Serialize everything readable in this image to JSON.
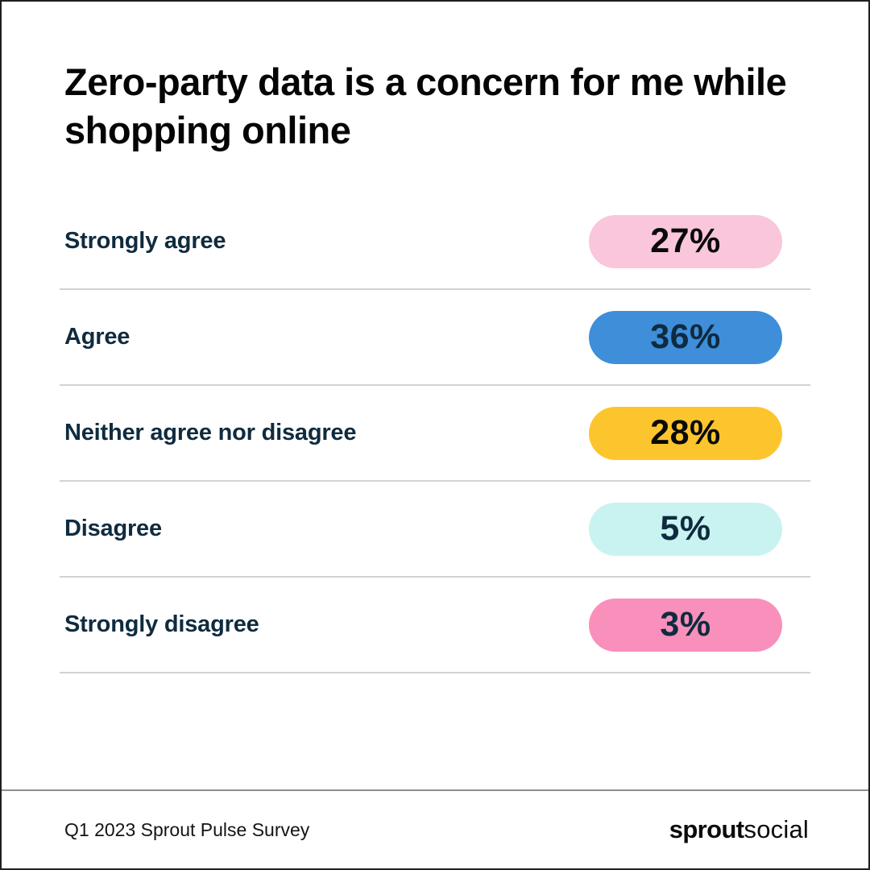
{
  "title": "Zero-party data is a concern for me while shopping online",
  "chart_data": {
    "type": "bar",
    "orientation": "horizontal-pills",
    "title": "Zero-party data is a concern for me while shopping online",
    "categories": [
      "Strongly agree",
      "Agree",
      "Neither agree nor disagree",
      "Disagree",
      "Strongly disagree"
    ],
    "values": [
      27,
      36,
      28,
      5,
      3
    ],
    "unit": "%",
    "legend": false,
    "grid": false
  },
  "rows": [
    {
      "label": "Strongly agree",
      "value": "27%",
      "pill_color": "#f9c6db",
      "text_color": "#0a0a0a"
    },
    {
      "label": "Agree",
      "value": "36%",
      "pill_color": "#3e8eda",
      "text_color": "#0f2b3f"
    },
    {
      "label": "Neither agree nor disagree",
      "value": "28%",
      "pill_color": "#fdc52d",
      "text_color": "#0a0a0a"
    },
    {
      "label": "Disagree",
      "value": "5%",
      "pill_color": "#c8f3f0",
      "text_color": "#0f2b3f"
    },
    {
      "label": "Strongly disagree",
      "value": "3%",
      "pill_color": "#f98fbb",
      "text_color": "#0f2b3f"
    }
  ],
  "footer": {
    "source": "Q1 2023 Sprout Pulse Survey",
    "logo_bold": "sprout",
    "logo_light": "social"
  },
  "colors": {
    "label_navy": "#0f2b3f",
    "divider_gray": "#d2d2d2",
    "footer_divider_gray": "#8e8e8e",
    "border": "#1f1f1f",
    "background": "#ffffff"
  }
}
